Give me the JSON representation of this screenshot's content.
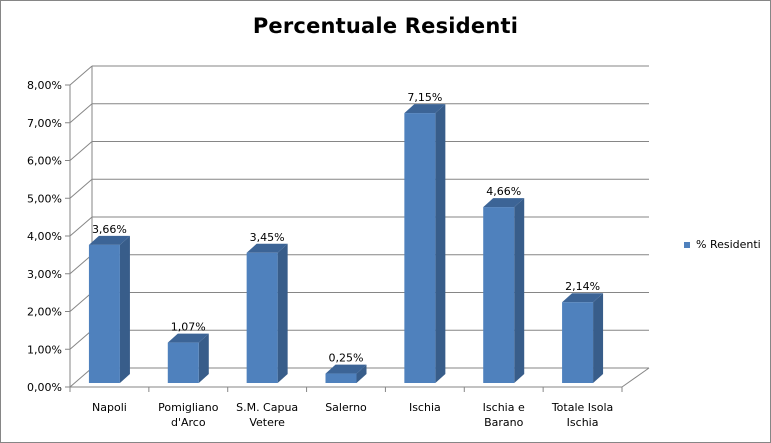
{
  "chart_data": {
    "type": "bar",
    "title": "Percentuale Residenti",
    "categories": [
      [
        "Napoli"
      ],
      [
        "Pomigliano",
        "d'Arco"
      ],
      [
        "S.M. Capua",
        "Vetere"
      ],
      [
        "Salerno"
      ],
      [
        "Ischia"
      ],
      [
        "Ischia e",
        "Barano"
      ],
      [
        "Totale Isola",
        "Ischia"
      ]
    ],
    "series": [
      {
        "name": "% Residenti",
        "values": [
          3.66,
          1.07,
          3.45,
          0.25,
          7.15,
          4.66,
          2.14
        ],
        "labels": [
          "3,66%",
          "1,07%",
          "3,45%",
          "0,25%",
          "7,15%",
          "4,66%",
          "2,14%"
        ]
      }
    ],
    "y_ticks": [
      "0,00%",
      "1,00%",
      "2,00%",
      "3,00%",
      "4,00%",
      "5,00%",
      "6,00%",
      "7,00%",
      "8,00%"
    ],
    "ylim": [
      0,
      8
    ],
    "grid": true,
    "legend_position": "right",
    "colors": {
      "bar_front": "#4f81bd",
      "bar_side": "#385d8a",
      "bar_top": "#3c6496",
      "grid": "#868686"
    }
  }
}
